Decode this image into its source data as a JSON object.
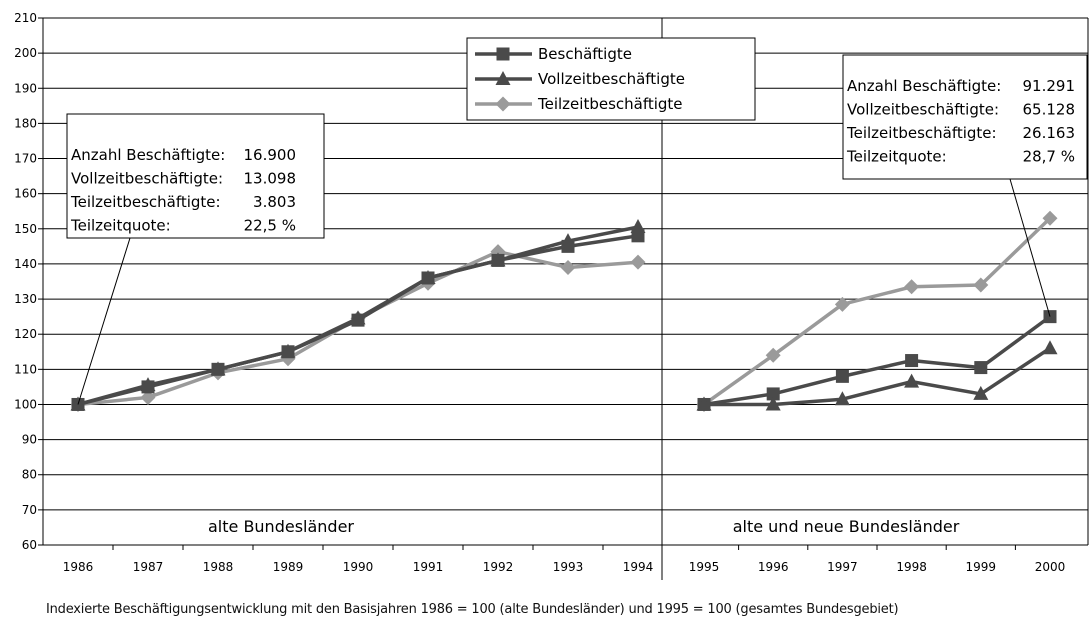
{
  "caption": "Indexierte Beschäftigungsentwicklung mit den Basisjahren 1986 = 100 (alte Bundesländer) und 1995 = 100 (gesamtes Bundesgebiet)",
  "chart_data": {
    "type": "line",
    "ylim": [
      60,
      210
    ],
    "yticks": [
      60,
      70,
      80,
      90,
      100,
      110,
      120,
      130,
      140,
      150,
      160,
      170,
      180,
      190,
      200,
      210
    ],
    "grid": true,
    "legend_placement": "top-center",
    "colors": {
      "Beschäftigte": "#4a4a4a",
      "Vollzeitbeschäftigte": "#4a4a4a",
      "Teilzeitbeschäftigte": "#9a9a9a"
    },
    "panels": [
      {
        "region_label": "alte Bundesländer",
        "categories": [
          "1986",
          "1987",
          "1988",
          "1989",
          "1990",
          "1991",
          "1992",
          "1993",
          "1994"
        ],
        "series": [
          {
            "name": "Beschäftigte",
            "marker": "square",
            "values": [
              100,
              105,
              110,
              115,
              124,
              136,
              141,
              145,
              148
            ]
          },
          {
            "name": "Vollzeitbeschäftigte",
            "marker": "triangle",
            "values": [
              100,
              105.5,
              110,
              115,
              124.5,
              136,
              141,
              146.5,
              150.5
            ]
          },
          {
            "name": "Teilzeitbeschäftigte",
            "marker": "diamond",
            "values": [
              100,
              102,
              109,
              113,
              124.5,
              134.5,
              143.5,
              139,
              140.5
            ]
          }
        ],
        "annotation": [
          {
            "label": "Anzahl Beschäftigte:",
            "value": "16.900"
          },
          {
            "label": "Vollzeitbeschäftigte:",
            "value": "13.098"
          },
          {
            "label": "Teilzeitbeschäftigte:",
            "value": "3.803"
          },
          {
            "label": "Teilzeitquote:",
            "value": "22,5 %"
          }
        ]
      },
      {
        "region_label": "alte und neue Bundesländer",
        "categories": [
          "1995",
          "1996",
          "1997",
          "1998",
          "1999",
          "2000"
        ],
        "series": [
          {
            "name": "Beschäftigte",
            "marker": "square",
            "values": [
              100,
              103,
              108,
              112.5,
              110.5,
              125
            ]
          },
          {
            "name": "Vollzeitbeschäftigte",
            "marker": "triangle",
            "values": [
              100,
              100,
              101.5,
              106.5,
              103,
              116
            ]
          },
          {
            "name": "Teilzeitbeschäftigte",
            "marker": "diamond",
            "values": [
              100,
              114,
              128.5,
              133.5,
              134,
              153
            ]
          }
        ],
        "annotation": [
          {
            "label": "Anzahl Beschäftigte:",
            "value": "91.291"
          },
          {
            "label": "Vollzeitbeschäftigte:",
            "value": "65.128"
          },
          {
            "label": "Teilzeitbeschäftigte:",
            "value": "26.163"
          },
          {
            "label": "Teilzeitquote:",
            "value": "28,7 %"
          }
        ]
      }
    ]
  }
}
